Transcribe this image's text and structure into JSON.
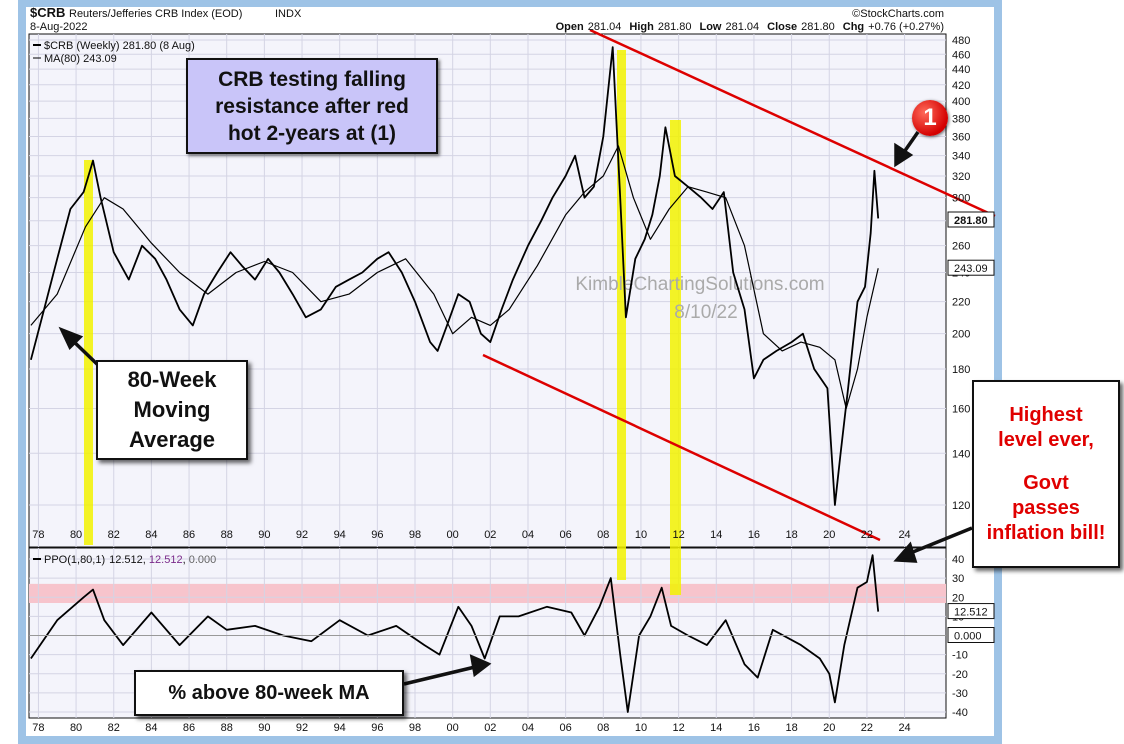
{
  "header": {
    "symbol": "$CRB",
    "name": "Reuters/Jefferies CRB Index (EOD)",
    "exchange": "INDX",
    "source": "©StockCharts.com",
    "date": "8-Aug-2022",
    "open_label": "Open",
    "open": "281.04",
    "high_label": "High",
    "high": "281.80",
    "low_label": "Low",
    "low": "281.04",
    "close_label": "Close",
    "close": "281.80",
    "chg_label": "Chg",
    "chg": "+0.76 (+0.27%)"
  },
  "legend": {
    "price": "$CRB (Weekly) 281.80 (8 Aug)",
    "ma": "MA(80) 243.09",
    "ppo_name": "PPO(1,80,1)",
    "ppo_v1": "12.512",
    "ppo_v2": "12.512",
    "ppo_v3": "0.000"
  },
  "watermark": {
    "line1": "KimbleChartingSolutions.com",
    "line2": "8/10/22"
  },
  "annotations": {
    "title_box": "CRB testing falling resistance after red hot 2-years at (1)",
    "ma_box_line1": "80-Week",
    "ma_box_line2": "Moving",
    "ma_box_line3": "Average",
    "pct_box": "% above 80-week MA",
    "high_line1": "Highest",
    "high_line2": "level ever,",
    "high_line3": "Govt",
    "high_line4": "passes",
    "high_line5": "inflation bill!",
    "marker": "1"
  },
  "colors": {
    "background": "#ffffff",
    "panel": "#f4f4fb",
    "frame": "#9ec3e6",
    "price": "#000000",
    "trendline": "#dd0000",
    "highlight": "#f2f200",
    "band": "#f7c4cc"
  },
  "chart_data": [
    {
      "type": "line",
      "title": "Reuters/Jefferies CRB Index (EOD)",
      "xlim": [
        1977.5,
        2026.2
      ],
      "x_ticks": [
        78,
        80,
        82,
        84,
        86,
        88,
        90,
        92,
        94,
        96,
        98,
        "00",
        "02",
        "04",
        "06",
        "08",
        10,
        12,
        14,
        16,
        18,
        20,
        22,
        24
      ],
      "y_scale": "log",
      "ylim": [
        100,
        480
      ],
      "y_ticks": [
        120,
        140,
        160,
        180,
        200,
        220,
        240,
        260,
        280,
        300,
        320,
        340,
        360,
        380,
        400,
        420,
        440,
        460,
        480
      ],
      "last_value_labels": [
        "281.80",
        "243.09"
      ],
      "grid": true,
      "series": [
        {
          "name": "$CRB (Weekly)",
          "x": [
            1977.6,
            1978.3,
            1979.0,
            1979.7,
            1980.4,
            1980.9,
            1981.3,
            1982.0,
            1982.8,
            1983.5,
            1984.2,
            1984.8,
            1985.5,
            1986.2,
            1986.8,
            1987.5,
            1988.2,
            1988.8,
            1989.5,
            1990.2,
            1990.8,
            1991.5,
            1992.2,
            1993.0,
            1993.8,
            1994.5,
            1995.2,
            1996.0,
            1996.6,
            1997.3,
            1998.0,
            1998.8,
            1999.2,
            1999.7,
            2000.3,
            2000.9,
            2001.5,
            2002.0,
            2002.6,
            2003.2,
            2004.0,
            2004.7,
            2005.3,
            2006.0,
            2006.5,
            2007.0,
            2007.5,
            2008.0,
            2008.5,
            2008.9,
            2009.2,
            2009.7,
            2010.2,
            2010.6,
            2011.0,
            2011.3,
            2011.8,
            2012.5,
            2013.2,
            2013.8,
            2014.4,
            2014.9,
            2015.5,
            2016.0,
            2016.5,
            2017.2,
            2018.0,
            2018.6,
            2019.2,
            2019.9,
            2020.3,
            2020.6,
            2021.0,
            2021.5,
            2021.9,
            2022.2,
            2022.4,
            2022.6
          ],
          "y": [
            185,
            215,
            250,
            290,
            305,
            335,
            300,
            255,
            235,
            260,
            250,
            235,
            215,
            205,
            225,
            240,
            255,
            245,
            235,
            250,
            240,
            225,
            210,
            215,
            230,
            235,
            240,
            250,
            255,
            240,
            220,
            195,
            190,
            205,
            225,
            220,
            200,
            195,
            215,
            235,
            260,
            280,
            300,
            320,
            340,
            300,
            310,
            360,
            470,
            300,
            210,
            250,
            265,
            285,
            320,
            370,
            320,
            310,
            300,
            290,
            305,
            240,
            215,
            175,
            185,
            190,
            195,
            200,
            180,
            170,
            120,
            140,
            170,
            220,
            230,
            270,
            325,
            282
          ]
        },
        {
          "name": "MA(80)",
          "x": [
            1977.6,
            1979.0,
            1980.5,
            1981.5,
            1982.5,
            1984.0,
            1985.5,
            1987.0,
            1988.5,
            1990.0,
            1991.5,
            1993.0,
            1994.5,
            1996.0,
            1997.5,
            1999.0,
            2000.0,
            2001.0,
            2002.0,
            2003.0,
            2004.5,
            2006.0,
            2007.0,
            2008.0,
            2008.8,
            2009.6,
            2010.5,
            2011.5,
            2012.5,
            2013.5,
            2014.5,
            2015.5,
            2016.5,
            2017.5,
            2018.5,
            2019.5,
            2020.3,
            2020.9,
            2021.5,
            2022.0,
            2022.6
          ],
          "y": [
            205,
            225,
            275,
            300,
            290,
            262,
            240,
            225,
            240,
            248,
            240,
            220,
            225,
            240,
            250,
            225,
            200,
            210,
            205,
            215,
            245,
            285,
            305,
            320,
            350,
            300,
            265,
            290,
            310,
            305,
            300,
            260,
            200,
            190,
            195,
            192,
            185,
            160,
            180,
            210,
            243.09
          ]
        }
      ]
    },
    {
      "type": "line",
      "title": "PPO(1,80,1)",
      "xlim": [
        1977.5,
        2026.2
      ],
      "ylim": [
        -40,
        48
      ],
      "y_ticks": [
        -40,
        -30,
        -20,
        -10,
        0,
        10,
        20,
        30,
        40
      ],
      "shaded_band": [
        17,
        27
      ],
      "last_value_labels": [
        "12.512",
        "0.000"
      ],
      "series": [
        {
          "name": "PPO(1,80,1)",
          "x": [
            1977.6,
            1979.0,
            1980.4,
            1980.9,
            1981.5,
            1982.5,
            1984.0,
            1985.5,
            1987.0,
            1988.0,
            1989.5,
            1991.0,
            1992.5,
            1994.0,
            1995.5,
            1997.0,
            1998.5,
            1999.3,
            2000.3,
            2001.0,
            2001.7,
            2002.5,
            2003.5,
            2005.0,
            2006.3,
            2007.0,
            2007.8,
            2008.4,
            2008.9,
            2009.3,
            2009.9,
            2010.5,
            2011.1,
            2011.6,
            2012.5,
            2013.5,
            2014.5,
            2015.5,
            2016.2,
            2017.0,
            2018.5,
            2019.5,
            2020.0,
            2020.3,
            2020.8,
            2021.5,
            2022.0,
            2022.3,
            2022.6
          ],
          "y": [
            -12,
            8,
            20,
            24,
            8,
            -5,
            12,
            -5,
            10,
            3,
            5,
            0,
            -3,
            8,
            0,
            5,
            -5,
            -10,
            15,
            5,
            -12,
            10,
            10,
            15,
            12,
            0,
            15,
            30,
            -10,
            -40,
            0,
            10,
            25,
            5,
            0,
            -5,
            8,
            -15,
            -22,
            3,
            -5,
            -12,
            -20,
            -35,
            -5,
            25,
            28,
            42,
            12.5
          ]
        }
      ]
    }
  ]
}
